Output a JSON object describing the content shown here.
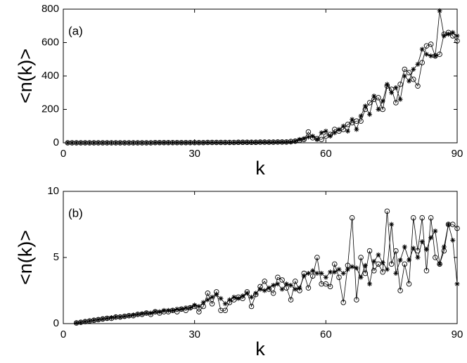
{
  "chart_data": [
    {
      "type": "line",
      "annotation": "(a)",
      "xlabel": "k",
      "ylabel": "<n(k)>",
      "x": [
        1,
        2,
        3,
        4,
        5,
        6,
        7,
        8,
        9,
        10,
        11,
        12,
        13,
        14,
        15,
        16,
        17,
        18,
        19,
        20,
        21,
        22,
        23,
        24,
        25,
        26,
        27,
        28,
        29,
        30,
        31,
        32,
        33,
        34,
        35,
        36,
        37,
        38,
        39,
        40,
        41,
        42,
        43,
        44,
        45,
        46,
        47,
        48,
        49,
        50,
        51,
        52,
        53,
        54,
        55,
        56,
        57,
        58,
        59,
        60,
        61,
        62,
        63,
        64,
        65,
        66,
        67,
        68,
        69,
        70,
        71,
        72,
        73,
        74,
        75,
        76,
        77,
        78,
        79,
        80,
        81,
        82,
        83,
        84,
        85,
        86,
        87,
        88,
        89,
        90
      ],
      "series": [
        {
          "marker": "circle",
          "color": "#000000",
          "values": [
            0,
            0,
            0,
            0,
            0,
            0,
            0,
            0,
            0,
            0,
            0,
            0,
            0,
            0,
            0,
            0,
            0,
            0,
            0,
            0,
            1,
            1,
            1,
            1,
            1,
            1,
            1,
            1,
            1,
            1,
            1,
            1,
            2,
            2,
            2,
            2,
            2,
            2,
            2,
            3,
            3,
            3,
            3,
            3,
            4,
            4,
            4,
            4,
            5,
            5,
            5,
            8,
            10,
            15,
            20,
            65,
            30,
            25,
            20,
            40,
            50,
            80,
            70,
            80,
            110,
            120,
            130,
            130,
            200,
            240,
            260,
            270,
            200,
            340,
            320,
            240,
            350,
            440,
            420,
            380,
            340,
            480,
            580,
            590,
            520,
            530,
            650,
            660,
            640,
            610
          ]
        },
        {
          "marker": "star",
          "color": "#000000",
          "values": [
            0,
            0,
            0,
            0,
            0,
            0,
            0,
            0,
            0,
            0,
            0,
            0,
            0,
            0,
            0,
            0,
            0,
            0,
            0,
            0,
            1,
            1,
            1,
            1,
            1,
            1,
            1,
            1,
            1,
            1,
            1,
            1,
            2,
            2,
            2,
            2,
            2,
            2,
            2,
            3,
            3,
            3,
            3,
            3,
            4,
            4,
            4,
            4,
            5,
            5,
            5,
            5,
            10,
            20,
            25,
            35,
            40,
            20,
            60,
            70,
            40,
            60,
            80,
            100,
            70,
            140,
            80,
            160,
            220,
            170,
            280,
            200,
            250,
            350,
            300,
            330,
            260,
            400,
            370,
            440,
            470,
            560,
            530,
            520,
            520,
            790,
            640,
            650,
            660,
            640
          ]
        }
      ],
      "xlim": [
        0,
        90
      ],
      "ylim": [
        0,
        800
      ],
      "xticks": [
        0,
        30,
        60,
        90
      ],
      "yticks": [
        0,
        200,
        400,
        600,
        800
      ]
    },
    {
      "type": "line",
      "annotation": "(b)",
      "xlabel": "k",
      "ylabel": "<n(k)>",
      "x": [
        3,
        4,
        5,
        6,
        7,
        8,
        9,
        10,
        11,
        12,
        13,
        14,
        15,
        16,
        17,
        18,
        19,
        20,
        21,
        22,
        23,
        24,
        25,
        26,
        27,
        28,
        29,
        30,
        31,
        32,
        33,
        34,
        35,
        36,
        37,
        38,
        39,
        40,
        41,
        42,
        43,
        44,
        45,
        46,
        47,
        48,
        49,
        50,
        51,
        52,
        53,
        54,
        55,
        56,
        57,
        58,
        59,
        60,
        61,
        62,
        63,
        64,
        65,
        66,
        67,
        68,
        69,
        70,
        71,
        72,
        73,
        74,
        75,
        76,
        77,
        78,
        79,
        80,
        81,
        82,
        83,
        84,
        85,
        86,
        87,
        88,
        89,
        90
      ],
      "series": [
        {
          "marker": "circle",
          "color": "#000000",
          "values": [
            0.05,
            0.1,
            0.15,
            0.2,
            0.25,
            0.3,
            0.35,
            0.4,
            0.4,
            0.5,
            0.5,
            0.55,
            0.6,
            0.6,
            0.7,
            0.7,
            0.8,
            0.7,
            0.9,
            0.8,
            0.9,
            0.9,
            1.0,
            0.9,
            1.1,
            1.0,
            1.2,
            1.3,
            0.9,
            1.3,
            2.3,
            1.5,
            2.4,
            1.0,
            1.0,
            1.6,
            1.8,
            2.0,
            1.9,
            2.4,
            1.3,
            2.2,
            2.8,
            3.2,
            2.6,
            2.3,
            3.5,
            3.3,
            2.7,
            1.8,
            3.2,
            2.5,
            3.8,
            2.7,
            3.6,
            5.0,
            3.0,
            3.0,
            2.8,
            4.5,
            3.5,
            1.6,
            4.4,
            8.0,
            1.8,
            5.0,
            3.8,
            5.5,
            4.0,
            4.5,
            3.9,
            8.5,
            4.5,
            5.5,
            2.5,
            4.5,
            3.0,
            8.0,
            5.5,
            8.0,
            4.0,
            8.0,
            5.0,
            4.5,
            5.5,
            7.5,
            7.5,
            7.2
          ]
        },
        {
          "marker": "star",
          "color": "#000000",
          "values": [
            0.05,
            0.1,
            0.15,
            0.2,
            0.25,
            0.3,
            0.35,
            0.4,
            0.45,
            0.5,
            0.5,
            0.55,
            0.6,
            0.65,
            0.7,
            0.75,
            0.8,
            0.8,
            0.9,
            0.9,
            1.0,
            1.0,
            1.0,
            1.1,
            1.1,
            1.2,
            1.2,
            1.4,
            1.3,
            1.6,
            1.8,
            2.0,
            2.2,
            1.9,
            1.5,
            1.8,
            2.0,
            1.9,
            2.1,
            2.3,
            2.0,
            2.3,
            2.6,
            2.5,
            2.7,
            2.9,
            3.0,
            2.6,
            3.0,
            2.9,
            2.6,
            2.7,
            3.6,
            3.8,
            4.0,
            3.8,
            3.8,
            3.5,
            3.9,
            3.9,
            4.1,
            3.8,
            4.1,
            4.3,
            4.2,
            3.5,
            4.4,
            3.0,
            4.7,
            5.2,
            4.6,
            4.1,
            7.5,
            3.8,
            4.8,
            5.8,
            4.8,
            5.7,
            5.0,
            6.2,
            5.6,
            6.5,
            7.0,
            4.5,
            5.8,
            7.5,
            6.3,
            3.0
          ]
        }
      ],
      "xlim": [
        0,
        90
      ],
      "ylim": [
        0,
        10
      ],
      "xticks": [
        0,
        30,
        60,
        90
      ],
      "yticks": [
        0,
        5,
        10
      ]
    }
  ]
}
